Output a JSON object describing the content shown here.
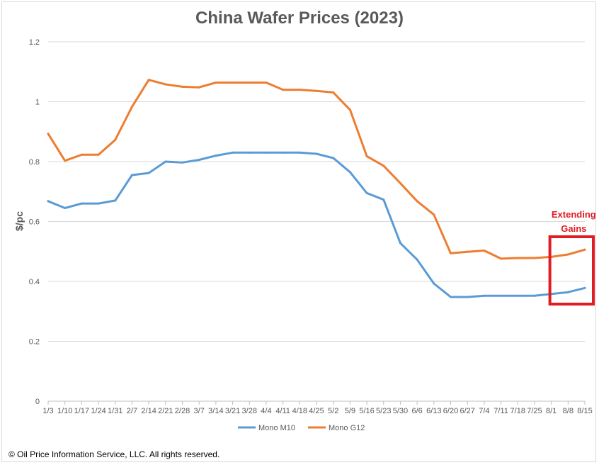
{
  "chart_data": {
    "type": "line",
    "title": "China Wafer Prices (2023)",
    "ylabel": "$/pc",
    "xlabel": "",
    "ylim": [
      0,
      1.2
    ],
    "yticks": [
      "0",
      "0.2",
      "0.4",
      "0.6",
      "0.8",
      "1",
      "1.2"
    ],
    "ytick_values": [
      0,
      0.2,
      0.4,
      0.6,
      0.8,
      1.0,
      1.2
    ],
    "grid": "horizontal",
    "legend_position": "bottom",
    "categories": [
      "1/3",
      "1/10",
      "1/17",
      "1/24",
      "1/31",
      "2/7",
      "2/14",
      "2/21",
      "2/28",
      "3/7",
      "3/14",
      "3/21",
      "3/28",
      "4/4",
      "4/11",
      "4/18",
      "4/25",
      "5/2",
      "5/9",
      "5/16",
      "5/23",
      "5/30",
      "6/6",
      "6/13",
      "6/20",
      "6/27",
      "7/4",
      "7/11",
      "7/18",
      "7/25",
      "8/1",
      "8/8",
      "8/15"
    ],
    "series": [
      {
        "name": "Mono M10",
        "color": "#5b9bd5",
        "values": [
          0.668,
          0.645,
          0.66,
          0.66,
          0.67,
          0.755,
          0.762,
          0.8,
          0.797,
          0.806,
          0.82,
          0.83,
          0.83,
          0.83,
          0.83,
          0.83,
          0.826,
          0.812,
          0.765,
          0.695,
          0.673,
          0.528,
          0.473,
          0.393,
          0.348,
          0.348,
          0.352,
          0.352,
          0.352,
          0.352,
          0.358,
          0.364,
          0.378
        ]
      },
      {
        "name": "Mono G12",
        "color": "#ed7d31",
        "values": [
          0.893,
          0.803,
          0.823,
          0.823,
          0.873,
          0.983,
          1.073,
          1.058,
          1.05,
          1.048,
          1.064,
          1.064,
          1.064,
          1.064,
          1.04,
          1.04,
          1.036,
          1.031,
          0.973,
          0.818,
          0.786,
          0.728,
          0.668,
          0.623,
          0.494,
          0.499,
          0.503,
          0.476,
          0.478,
          0.478,
          0.482,
          0.49,
          0.506
        ]
      }
    ],
    "annotation": {
      "label_line1": "Extending",
      "label_line2": "Gains",
      "color": "#e31b23",
      "from_category": "8/1",
      "to_category": "8/15"
    }
  },
  "footer": {
    "copyright": "© Oil Price Information Service, LLC.  All rights reserved."
  }
}
